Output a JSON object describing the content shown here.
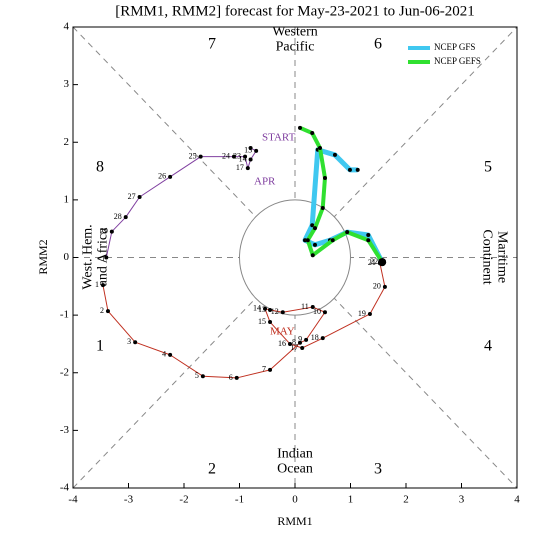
{
  "chart_data": {
    "type": "phase",
    "title": "[RMM1, RMM2] forecast for May-23-2021 to Jun-06-2021",
    "x_label": "RMM1",
    "y_label": "RMM2",
    "xlim": [
      -4,
      4
    ],
    "ylim": [
      -4,
      4
    ],
    "xticks": [
      -4,
      -3,
      -2,
      -1,
      0,
      1,
      2,
      3,
      4
    ],
    "yticks": [
      -4,
      -3,
      -2,
      -1,
      0,
      1,
      2,
      3,
      4
    ],
    "phase_labels": [
      "1",
      "2",
      "3",
      "4",
      "5",
      "6",
      "7",
      "8"
    ],
    "regions": [
      [
        "Western",
        "Pacific"
      ],
      [
        "Indian",
        "Ocean"
      ],
      [
        "West. Hem.",
        "and Africa"
      ],
      [
        "Maritime",
        "Continent"
      ]
    ],
    "annotations": [
      {
        "text": "START",
        "color": "#8040a0"
      },
      {
        "text": "APR",
        "color": "#8040a0"
      },
      {
        "text": "MAY",
        "color": "#c03020"
      }
    ],
    "series": [
      {
        "color": "#8040a0",
        "width": 1,
        "x": [
          -0.8,
          -0.7,
          -0.8,
          -0.85,
          -0.9,
          -1.1,
          -1.7,
          -2.25,
          -2.8,
          -3.05,
          -3.3,
          -3.4
        ],
        "y": [
          1.9,
          1.85,
          1.7,
          1.55,
          1.75,
          1.75,
          1.75,
          1.4,
          1.05,
          0.7,
          0.45,
          0.0
        ],
        "labels": [
          null,
          "13",
          "14",
          "17",
          "23",
          "24",
          "25",
          "26",
          "27",
          "28",
          "29",
          null
        ]
      },
      {
        "color": "#c03020",
        "width": 1,
        "x": [
          -3.46,
          -3.37,
          -2.88,
          -2.25,
          -1.66,
          -1.05,
          -0.45,
          0.09,
          0.2,
          0.54,
          0.32,
          -0.22,
          -0.45,
          -0.54,
          -0.45,
          -0.09,
          0.13,
          0.5,
          1.35,
          1.62,
          1.53,
          1.57
        ],
        "y": [
          -0.48,
          -0.93,
          -1.47,
          -1.69,
          -2.06,
          -2.09,
          -1.95,
          -1.48,
          -1.43,
          -0.95,
          -0.86,
          -0.95,
          -0.91,
          -0.89,
          -1.12,
          -1.5,
          -1.57,
          -1.4,
          -0.98,
          -0.51,
          -0.1,
          -0.08
        ],
        "labels": [
          "1",
          "2",
          "3",
          "4",
          "5",
          "6",
          "7",
          "8",
          "9",
          "10",
          "11",
          "12",
          "13",
          "14",
          "15",
          "16",
          "17",
          "18",
          "19",
          "20",
          "21",
          "22"
        ]
      },
      {
        "name": "NCEP GFS",
        "color": "#40c8f0",
        "width": 5,
        "x": [
          1.57,
          1.32,
          0.94,
          0.63,
          0.36,
          0.18,
          0.31,
          0.41,
          0.72,
          0.99,
          1.13
        ],
        "y": [
          -0.08,
          0.39,
          0.44,
          0.3,
          0.22,
          0.3,
          0.56,
          1.87,
          1.78,
          1.52,
          1.52
        ]
      },
      {
        "name": "NCEP GEFS",
        "color": "#30e030",
        "width": 4,
        "x": [
          1.57,
          1.32,
          0.94,
          0.68,
          0.32,
          0.23,
          0.36,
          0.5,
          0.54,
          0.45,
          0.31,
          0.09
        ],
        "y": [
          -0.08,
          0.3,
          0.44,
          0.3,
          0.04,
          0.3,
          0.51,
          0.86,
          1.38,
          1.9,
          2.16,
          2.25
        ]
      }
    ]
  }
}
